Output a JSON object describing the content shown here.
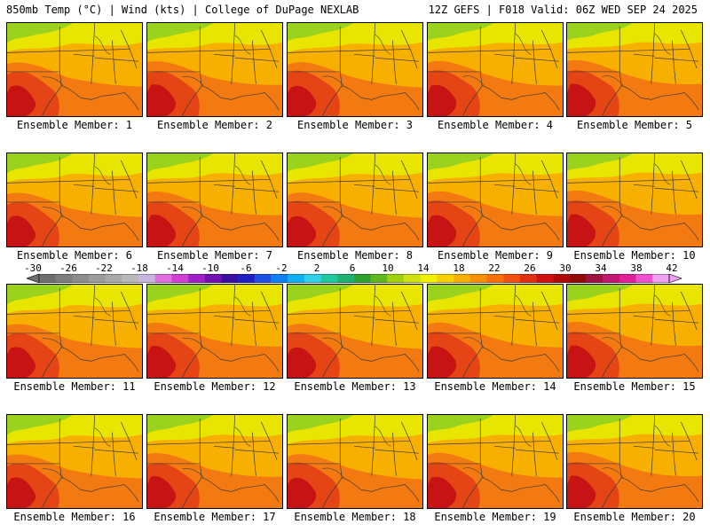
{
  "header": {
    "left": "850mb Temp (°C) | Wind (kts) | College of DuPage NEXLAB",
    "right": "12Z GEFS | F018 Valid: 06Z WED SEP 24 2025"
  },
  "panels": [
    {
      "label": "Ensemble Member: 1"
    },
    {
      "label": "Ensemble Member: 2"
    },
    {
      "label": "Ensemble Member: 3"
    },
    {
      "label": "Ensemble Member: 4"
    },
    {
      "label": "Ensemble Member: 5"
    },
    {
      "label": "Ensemble Member: 6"
    },
    {
      "label": "Ensemble Member: 7"
    },
    {
      "label": "Ensemble Member: 8"
    },
    {
      "label": "Ensemble Member: 9"
    },
    {
      "label": "Ensemble Member: 10"
    },
    {
      "label": "Ensemble Member: 11"
    },
    {
      "label": "Ensemble Member: 12"
    },
    {
      "label": "Ensemble Member: 13"
    },
    {
      "label": "Ensemble Member: 14"
    },
    {
      "label": "Ensemble Member: 15"
    },
    {
      "label": "Ensemble Member: 16"
    },
    {
      "label": "Ensemble Member: 17"
    },
    {
      "label": "Ensemble Member: 18"
    },
    {
      "label": "Ensemble Member: 19"
    },
    {
      "label": "Ensemble Member: 20"
    }
  ],
  "colorbar": {
    "labels": [
      "-30",
      "-26",
      "-22",
      "-18",
      "-14",
      "-10",
      "-6",
      "-2",
      "2",
      "6",
      "10",
      "14",
      "18",
      "22",
      "26",
      "30",
      "34",
      "38",
      "42"
    ],
    "colors": [
      "#6e6e6e",
      "#7d7d7d",
      "#8c8c8c",
      "#9b9b9b",
      "#a9a9a9",
      "#b8b8b8",
      "#c8b4e0",
      "#e070e0",
      "#d040d0",
      "#a020c8",
      "#7010b0",
      "#3a10a0",
      "#2020c0",
      "#2050e0",
      "#1080f0",
      "#10b0f0",
      "#30d0e8",
      "#20c8a0",
      "#20b070",
      "#30a030",
      "#60b820",
      "#a0d010",
      "#d0e010",
      "#f0f000",
      "#f8d000",
      "#f8b000",
      "#f89000",
      "#f87000",
      "#f05010",
      "#e03010",
      "#d01010",
      "#b00808",
      "#900808",
      "#a01040",
      "#c01870",
      "#e02098",
      "#f050d0",
      "#f0a0f0"
    ]
  },
  "theme": {
    "cold": "#9bd21e",
    "cool": "#e8e600",
    "warm": "#f8b000",
    "hot": "#f37a10",
    "hotter": "#e54414",
    "hottest": "#c71313"
  }
}
